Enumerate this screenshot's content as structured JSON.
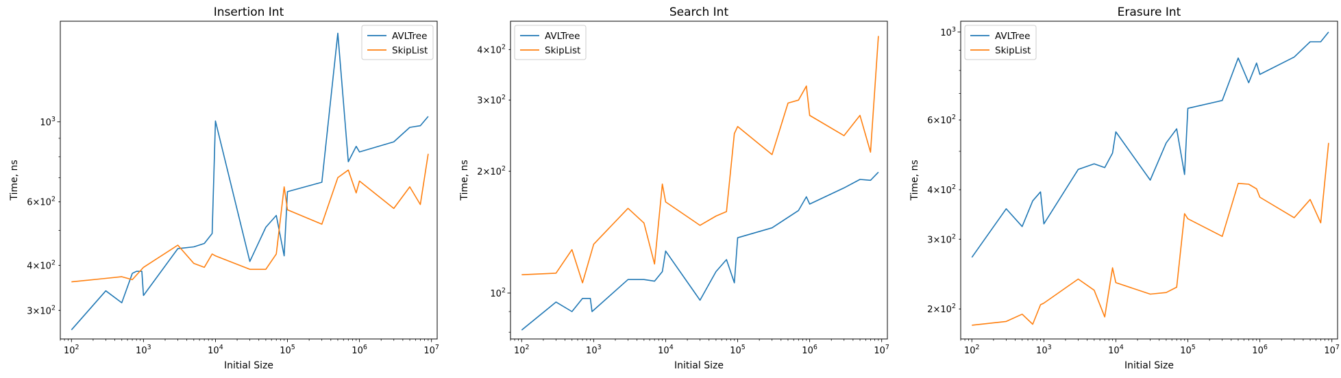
{
  "chart_data": [
    {
      "type": "line",
      "title": "Insertion Int",
      "xlabel": "Initial Size",
      "ylabel": "Time, ns",
      "xscale": "log",
      "yscale": "log",
      "xlim": [
        70,
        12000000
      ],
      "ylim": [
        250,
        1900
      ],
      "xticks": [
        {
          "v": 100,
          "b": "10",
          "e": "2"
        },
        {
          "v": 1000,
          "b": "10",
          "e": "3"
        },
        {
          "v": 10000,
          "b": "10",
          "e": "4"
        },
        {
          "v": 100000,
          "b": "10",
          "e": "5"
        },
        {
          "v": 1000000,
          "b": "10",
          "e": "6"
        },
        {
          "v": 10000000,
          "b": "10",
          "e": "7"
        }
      ],
      "yticks": [
        {
          "v": 300,
          "m": "3",
          "b": "10",
          "e": "2"
        },
        {
          "v": 400,
          "m": "4",
          "b": "10",
          "e": "2"
        },
        {
          "v": 600,
          "m": "6",
          "b": "10",
          "e": "2"
        },
        {
          "v": 1000,
          "m": "",
          "b": "10",
          "e": "3"
        }
      ],
      "legend": "upper-right",
      "grid": false,
      "series": [
        {
          "name": "AVLTree",
          "color": "#1f77b4",
          "x": [
            100,
            300,
            500,
            700,
            800,
            950,
            1000,
            3000,
            5000,
            7000,
            9000,
            10000,
            30000,
            50000,
            70000,
            90000,
            100000,
            300000,
            500000,
            700000,
            900000,
            1000000,
            3000000,
            5000000,
            7000000,
            9000000
          ],
          "y": [
            265,
            340,
            315,
            380,
            385,
            385,
            330,
            445,
            450,
            460,
            490,
            1005,
            410,
            510,
            550,
            425,
            640,
            680,
            1760,
            775,
            855,
            825,
            880,
            965,
            975,
            1035
          ]
        },
        {
          "name": "SkipList",
          "color": "#ff7f0e",
          "x": [
            100,
            300,
            500,
            700,
            1000,
            3000,
            5000,
            7000,
            9000,
            10000,
            30000,
            50000,
            70000,
            90000,
            100000,
            300000,
            500000,
            700000,
            900000,
            1000000,
            3000000,
            5000000,
            7000000,
            9000000
          ],
          "y": [
            360,
            368,
            372,
            365,
            395,
            455,
            405,
            395,
            430,
            425,
            390,
            390,
            430,
            660,
            570,
            520,
            700,
            735,
            635,
            685,
            575,
            660,
            590,
            815
          ]
        }
      ]
    },
    {
      "type": "line",
      "title": "Search Int",
      "xlabel": "Initial Size",
      "ylabel": "Time, ns",
      "xscale": "log",
      "yscale": "log",
      "xlim": [
        70,
        12000000
      ],
      "ylim": [
        77,
        470
      ],
      "xticks": [
        {
          "v": 100,
          "b": "10",
          "e": "2"
        },
        {
          "v": 1000,
          "b": "10",
          "e": "3"
        },
        {
          "v": 10000,
          "b": "10",
          "e": "4"
        },
        {
          "v": 100000,
          "b": "10",
          "e": "5"
        },
        {
          "v": 1000000,
          "b": "10",
          "e": "6"
        },
        {
          "v": 10000000,
          "b": "10",
          "e": "7"
        }
      ],
      "yticks": [
        {
          "v": 100,
          "m": "",
          "b": "10",
          "e": "2"
        },
        {
          "v": 200,
          "m": "2",
          "b": "10",
          "e": "2"
        },
        {
          "v": 300,
          "m": "3",
          "b": "10",
          "e": "2"
        },
        {
          "v": 400,
          "m": "4",
          "b": "10",
          "e": "2"
        }
      ],
      "legend": "upper-left",
      "grid": false,
      "series": [
        {
          "name": "AVLTree",
          "color": "#1f77b4",
          "x": [
            100,
            300,
            500,
            700,
            900,
            950,
            3000,
            5000,
            7000,
            9000,
            10000,
            30000,
            50000,
            70000,
            90000,
            100000,
            300000,
            700000,
            900000,
            1000000,
            3000000,
            5000000,
            7000000,
            9000000
          ],
          "y": [
            81,
            95,
            90,
            97,
            97,
            90,
            108,
            108,
            107,
            113,
            127,
            96,
            113,
            121,
            106,
            137,
            145,
            160,
            173,
            166,
            182,
            191,
            190,
            199
          ]
        },
        {
          "name": "SkipList",
          "color": "#ff7f0e",
          "x": [
            100,
            300,
            500,
            700,
            1000,
            3000,
            5000,
            7000,
            9000,
            10000,
            30000,
            50000,
            70000,
            90000,
            100000,
            300000,
            500000,
            700000,
            900000,
            1000000,
            3000000,
            5000000,
            7000000,
            9000000
          ],
          "y": [
            111,
            112,
            128,
            106,
            132,
            162,
            149,
            118,
            186,
            168,
            147,
            155,
            159,
            248,
            258,
            220,
            295,
            300,
            325,
            275,
            245,
            275,
            223,
            432
          ]
        }
      ]
    },
    {
      "type": "line",
      "title": "Erasure Int",
      "xlabel": "Initial Size",
      "ylabel": "Time, ns",
      "xscale": "log",
      "yscale": "log",
      "xlim": [
        70,
        12000000
      ],
      "ylim": [
        168,
        1065
      ],
      "xticks": [
        {
          "v": 100,
          "b": "10",
          "e": "2"
        },
        {
          "v": 1000,
          "b": "10",
          "e": "3"
        },
        {
          "v": 10000,
          "b": "10",
          "e": "4"
        },
        {
          "v": 100000,
          "b": "10",
          "e": "5"
        },
        {
          "v": 1000000,
          "b": "10",
          "e": "6"
        },
        {
          "v": 10000000,
          "b": "10",
          "e": "7"
        }
      ],
      "yticks": [
        {
          "v": 200,
          "m": "2",
          "b": "10",
          "e": "2"
        },
        {
          "v": 300,
          "m": "3",
          "b": "10",
          "e": "2"
        },
        {
          "v": 400,
          "m": "4",
          "b": "10",
          "e": "2"
        },
        {
          "v": 600,
          "m": "6",
          "b": "10",
          "e": "2"
        },
        {
          "v": 1000,
          "m": "",
          "b": "10",
          "e": "3"
        }
      ],
      "legend": "upper-left",
      "grid": false,
      "series": [
        {
          "name": "AVLTree",
          "color": "#1f77b4",
          "x": [
            100,
            300,
            500,
            700,
            900,
            1000,
            3000,
            5000,
            7000,
            9000,
            10000,
            30000,
            50000,
            70000,
            90000,
            100000,
            300000,
            500000,
            700000,
            900000,
            1000000,
            3000000,
            5000000,
            7000000,
            9000000
          ],
          "y": [
            270,
            358,
            323,
            375,
            395,
            328,
            450,
            465,
            455,
            495,
            560,
            423,
            525,
            570,
            437,
            642,
            672,
            860,
            745,
            835,
            782,
            865,
            945,
            945,
            1000
          ]
        },
        {
          "name": "SkipList",
          "color": "#ff7f0e",
          "x": [
            100,
            300,
            500,
            700,
            900,
            1000,
            3000,
            5000,
            7000,
            9000,
            10000,
            30000,
            50000,
            70000,
            90000,
            100000,
            300000,
            500000,
            700000,
            900000,
            1000000,
            3000000,
            5000000,
            7000000,
            9000000
          ],
          "y": [
            182,
            186,
            194,
            183,
            205,
            207,
            238,
            223,
            191,
            254,
            233,
            218,
            220,
            227,
            348,
            338,
            305,
            415,
            413,
            402,
            383,
            340,
            378,
            330,
            525
          ]
        }
      ]
    }
  ]
}
